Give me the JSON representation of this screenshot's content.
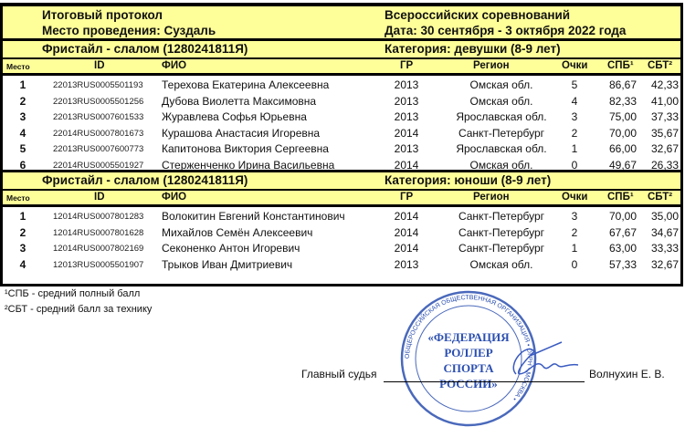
{
  "header": {
    "title": "Итоговый протокол",
    "venue": "Место проведения:   Суздаль",
    "competition": "Всероссийских соревнований",
    "date": "Дата:  30 сентября - 3 октября 2022 года"
  },
  "columns": {
    "place": "Место",
    "id": "ID",
    "fio": "ФИО",
    "gr": "ГР",
    "region": "Регион",
    "points": "Очки",
    "spb": "СПБ¹",
    "sbt": "СБТ²"
  },
  "sections": [
    {
      "discipline": "Фристайл - слалом (1280241811Я)",
      "category": "Категория: девушки (8-9 лет)",
      "rows": [
        {
          "place": "1",
          "id": "22013RUS0005501193",
          "fio": "Терехова Екатерина Алексеевна",
          "gr": "2013",
          "region": "Омская обл.",
          "points": "5",
          "spb": "86,67",
          "sbt": "42,33"
        },
        {
          "place": "2",
          "id": "22013RUS0005501256",
          "fio": "Дубова Виолетта Максимовна",
          "gr": "2013",
          "region": "Омская обл.",
          "points": "4",
          "spb": "82,33",
          "sbt": "41,00"
        },
        {
          "place": "3",
          "id": "22013RUS0007601533",
          "fio": "Журавлева Софья Юрьевна",
          "gr": "2013",
          "region": "Ярославская обл.",
          "points": "3",
          "spb": "75,00",
          "sbt": "37,33"
        },
        {
          "place": "4",
          "id": "22014RUS0007801673",
          "fio": "Курашова Анастасия Игоревна",
          "gr": "2014",
          "region": "Санкт-Петербург",
          "points": "2",
          "spb": "70,00",
          "sbt": "35,67"
        },
        {
          "place": "5",
          "id": "22013RUS0007600773",
          "fio": "Капитонова Виктория Сергеевна",
          "gr": "2013",
          "region": "Ярославская обл.",
          "points": "1",
          "spb": "66,00",
          "sbt": "32,67"
        },
        {
          "place": "6",
          "id": "22014RUS0005501927",
          "fio": "Стерженченко Ирина Васильевна",
          "gr": "2014",
          "region": "Омская обл.",
          "points": "0",
          "spb": "49,67",
          "sbt": "26,33"
        }
      ]
    },
    {
      "discipline": "Фристайл - слалом (1280241811Я)",
      "category": "Категория: юноши (8-9 лет)",
      "rows": [
        {
          "place": "1",
          "id": "12014RUS0007801283",
          "fio": "Волокитин Евгений Константинович",
          "gr": "2014",
          "region": "Санкт-Петербург",
          "points": "3",
          "spb": "70,00",
          "sbt": "35,00"
        },
        {
          "place": "2",
          "id": "12014RUS0007801628",
          "fio": "Михайлов Семён Алексеевич",
          "gr": "2014",
          "region": "Санкт-Петербург",
          "points": "2",
          "spb": "67,67",
          "sbt": "34,67"
        },
        {
          "place": "3",
          "id": "12014RUS0007802169",
          "fio": "Секоненко Антон Игоревич",
          "gr": "2014",
          "region": "Санкт-Петербург",
          "points": "1",
          "spb": "63,00",
          "sbt": "33,33"
        },
        {
          "place": "4",
          "id": "12013RUS0005501907",
          "fio": "Трыков Иван Дмитриевич",
          "gr": "2013",
          "region": "Омская обл.",
          "points": "0",
          "spb": "57,33",
          "sbt": "32,67"
        }
      ]
    }
  ],
  "footnotes": [
    "¹СПБ - средний полный балл",
    "²СБТ - средний балл за технику"
  ],
  "signature": {
    "role": "Главный судья",
    "name": "Волнухин Е. В."
  },
  "stamp": {
    "center_lines": [
      "«ФЕДЕРАЦИЯ",
      "РОЛЛЕР",
      "СПОРТА",
      "РОССИИ»"
    ],
    "ring": "ОБЩЕРОССИЙСКАЯ ОБЩЕСТВЕННАЯ ОРГАНИЗАЦИЯ • ОГРН • МОСКВА •",
    "color": "#2b4fb0"
  },
  "colors": {
    "header_bg": "#ffff99",
    "border": "#000000"
  }
}
